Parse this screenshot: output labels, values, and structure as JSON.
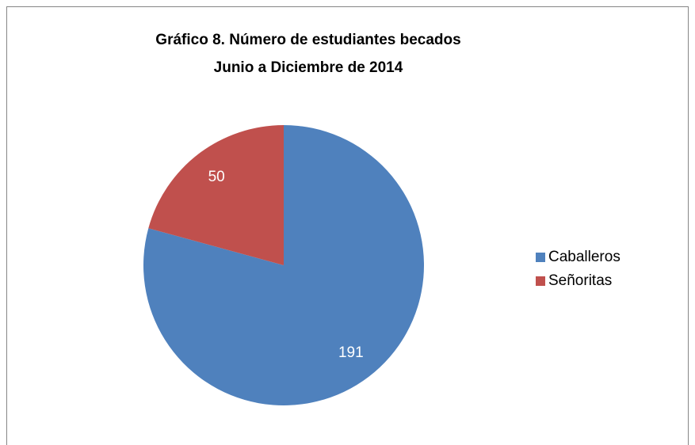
{
  "chart_data": {
    "type": "pie",
    "title": "Gráfico 8. Número de estudiantes becados",
    "subtitle": "Junio a Diciembre de 2014",
    "categories": [
      "Caballeros",
      "Señoritas"
    ],
    "values": [
      191,
      50
    ],
    "colors": [
      "#4f81bd",
      "#c0504d"
    ],
    "legend": "right"
  }
}
